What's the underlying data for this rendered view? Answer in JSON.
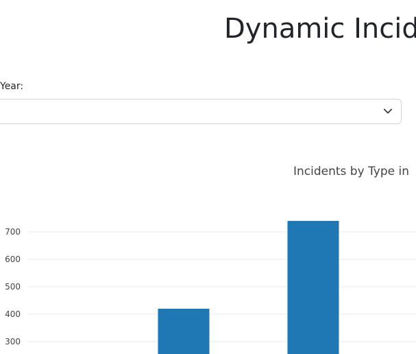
{
  "header": {
    "title": "Dynamic Incide"
  },
  "filters": {
    "year_label": "Year:",
    "year_value": ""
  },
  "icons": {
    "dropdown": "chevron-down-icon"
  },
  "colors": {
    "bar": "#1f77b4",
    "grid": "#ebebeb"
  },
  "chart_data": {
    "type": "bar",
    "title": "Incidents by Type in",
    "xlabel": "",
    "ylabel": "",
    "y_ticks": [
      300,
      400,
      500,
      600,
      700
    ],
    "ylim": [
      262,
      765
    ],
    "grid": true,
    "series": [
      {
        "values": [
          420,
          740
        ]
      }
    ]
  }
}
